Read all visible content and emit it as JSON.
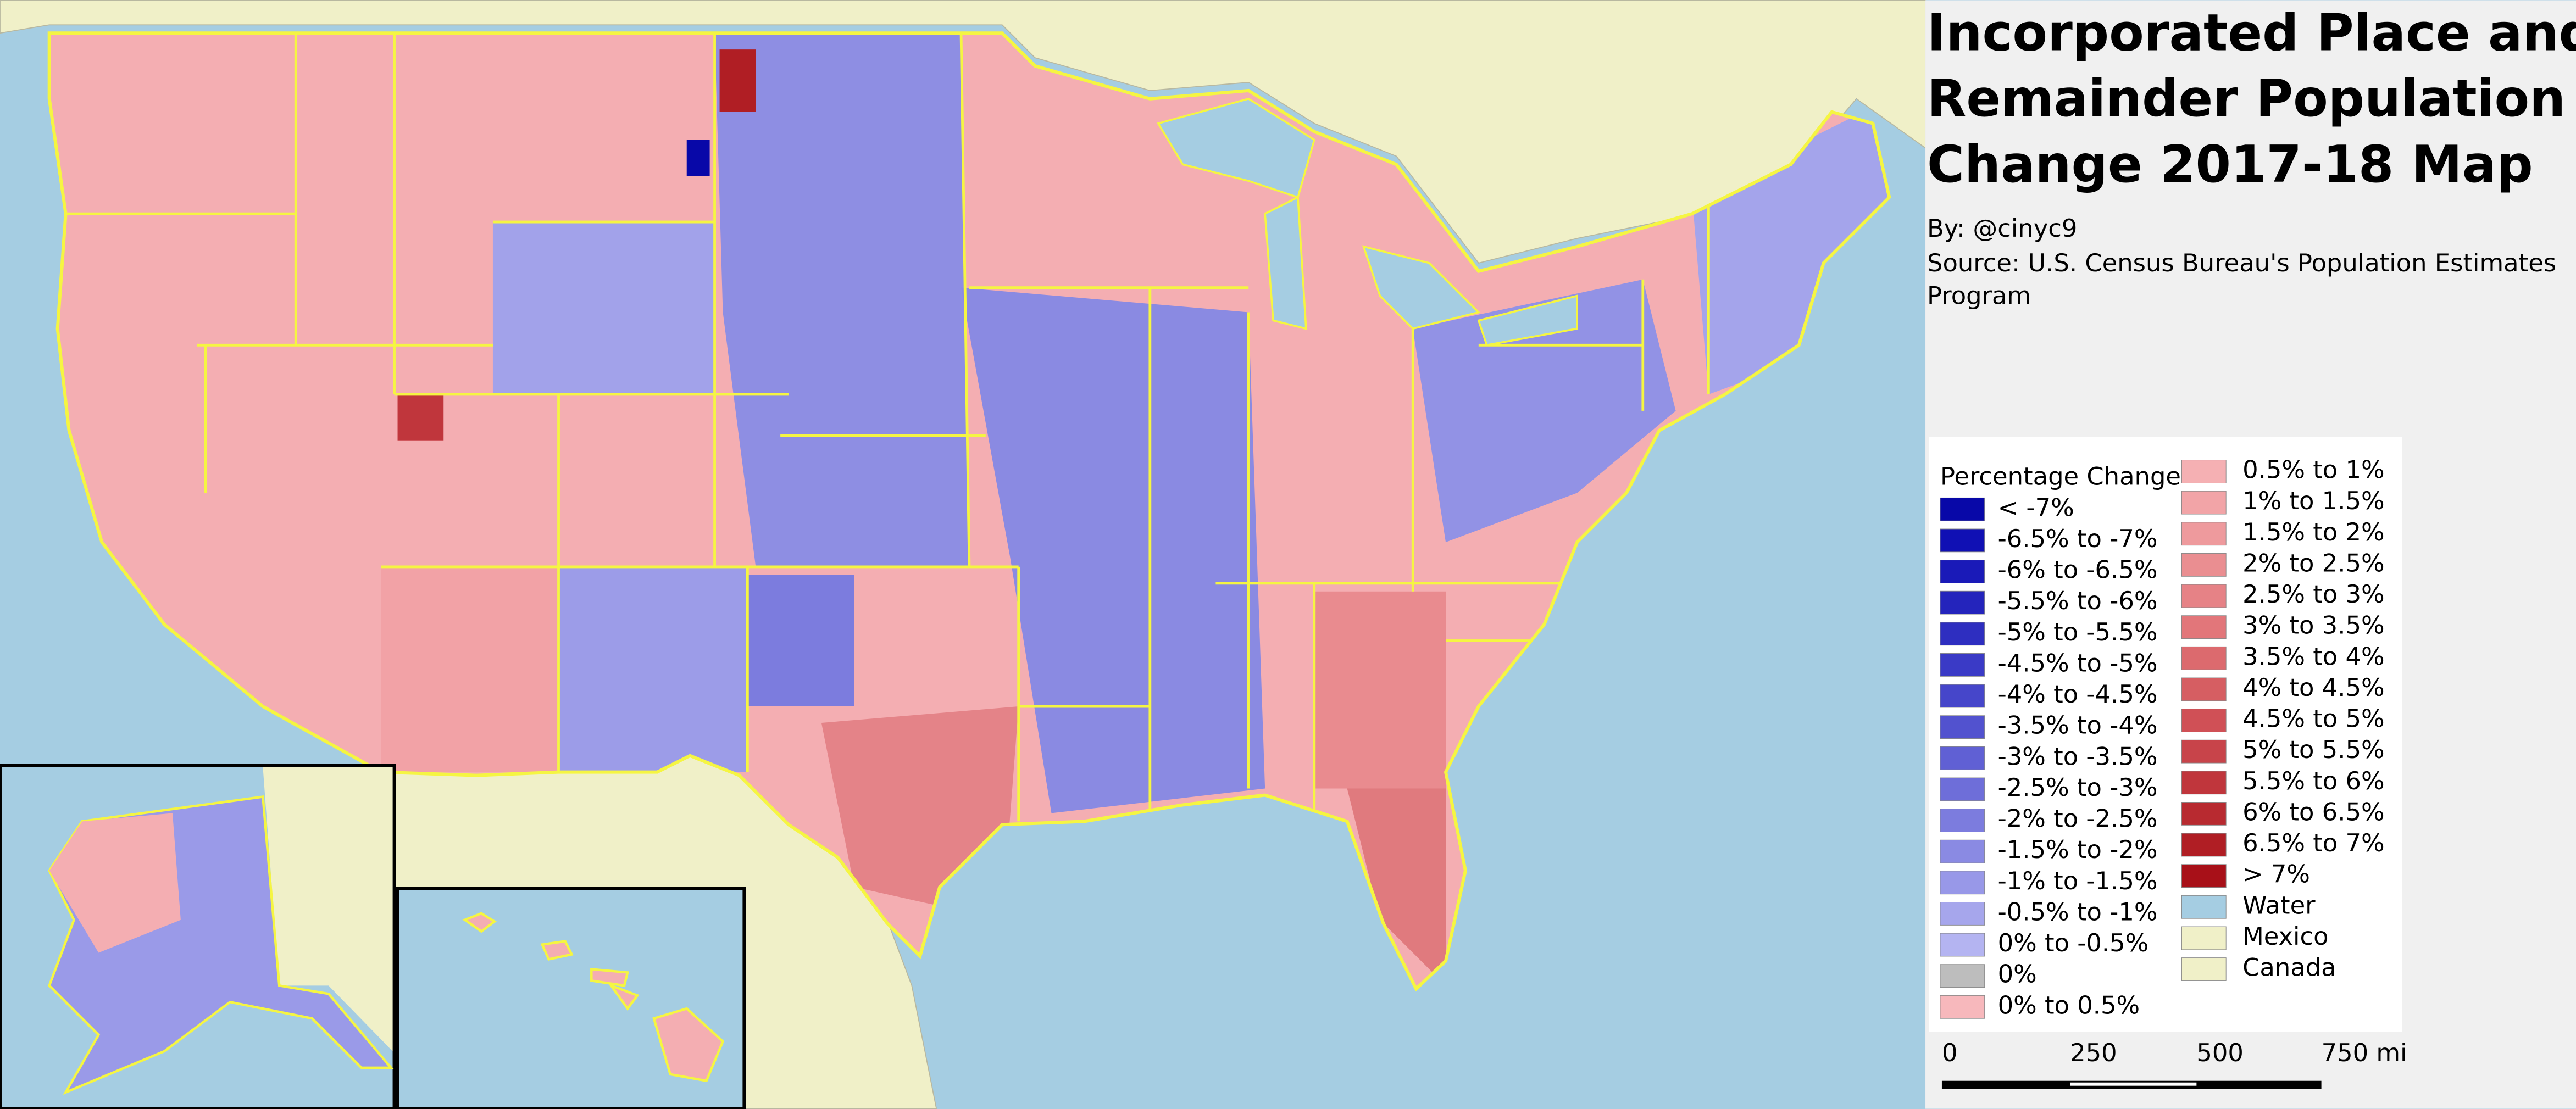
{
  "header": {
    "title_lines": [
      "Incorporated Place and",
      "Remainder Population",
      "Change 2017-18 Map"
    ],
    "byline": "By: @cinyc9",
    "source_lines": [
      "Source: U.S. Census Bureau's Population Estimates",
      "Program"
    ]
  },
  "legend": {
    "title": "Percentage Change",
    "items": [
      {
        "label": "< -7%",
        "color": "#0808a8"
      },
      {
        "label": "-6.5% to -7%",
        "color": "#1010b4"
      },
      {
        "label": "-6% to -6.5%",
        "color": "#1a1ab8"
      },
      {
        "label": "-5.5% to -6%",
        "color": "#2424bc"
      },
      {
        "label": "-5% to -5.5%",
        "color": "#2e2ec0"
      },
      {
        "label": "-4.5% to -5%",
        "color": "#3a3ac6"
      },
      {
        "label": "-4% to -4.5%",
        "color": "#4646ca"
      },
      {
        "label": "-3.5% to -4%",
        "color": "#5252cf"
      },
      {
        "label": "-3% to -3.5%",
        "color": "#6060d4"
      },
      {
        "label": "-2.5% to -3%",
        "color": "#6e6ed9"
      },
      {
        "label": "-2% to -2.5%",
        "color": "#7c7cde"
      },
      {
        "label": "-1.5% to -2%",
        "color": "#8a8ae3"
      },
      {
        "label": "-1% to -1.5%",
        "color": "#9898e8"
      },
      {
        "label": "-0.5% to -1%",
        "color": "#a6a6ec"
      },
      {
        "label": "0% to -0.5%",
        "color": "#b4b4f1"
      },
      {
        "label": "0%",
        "color": "#bdbdbd"
      },
      {
        "label": "0% to 0.5%",
        "color": "#f7b8bc"
      },
      {
        "label": "0.5% to 1%",
        "color": "#f5b0b3"
      },
      {
        "label": "1% to 1.5%",
        "color": "#f2a4a7"
      },
      {
        "label": "1.5% to 2%",
        "color": "#ee9a9d"
      },
      {
        "label": "2% to 2.5%",
        "color": "#ea8e91"
      },
      {
        "label": "2.5% to 3%",
        "color": "#e68286"
      },
      {
        "label": "3% to 3.5%",
        "color": "#e2767a"
      },
      {
        "label": "3.5% to 4%",
        "color": "#dc6a6e"
      },
      {
        "label": "4% to 4.5%",
        "color": "#d65e62"
      },
      {
        "label": "4.5% to 5%",
        "color": "#d05056"
      },
      {
        "label": "5% to 5.5%",
        "color": "#c8444a"
      },
      {
        "label": "5.5% to 6%",
        "color": "#c0363c"
      },
      {
        "label": "6% to 6.5%",
        "color": "#b82a30"
      },
      {
        "label": "6.5% to 7%",
        "color": "#b01e24"
      },
      {
        "label": "> 7%",
        "color": "#a81018"
      },
      {
        "label": "Water",
        "color": "#a5cde2"
      },
      {
        "label": "Mexico",
        "color": "#f0f0c8"
      },
      {
        "label": "Canada",
        "color": "#f0f0c8"
      }
    ]
  },
  "scale_bar": {
    "labels": [
      "0",
      "250",
      "500",
      "750 mi"
    ]
  }
}
